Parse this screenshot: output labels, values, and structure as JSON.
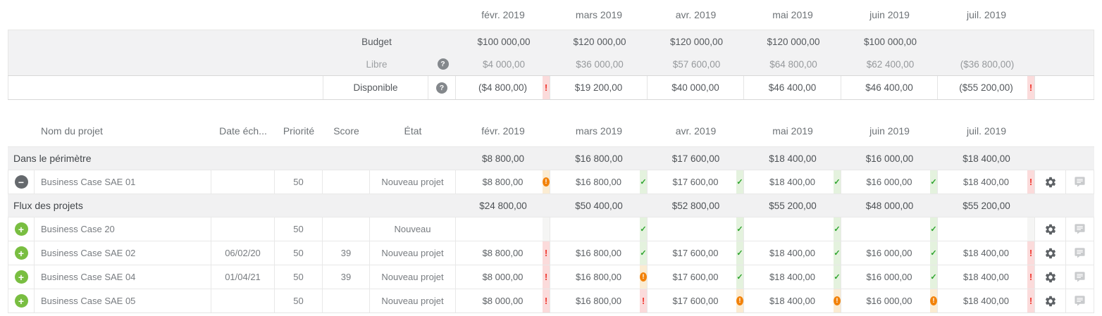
{
  "months": [
    "févr. 2019",
    "mars 2019",
    "avr. 2019",
    "mai 2019",
    "juin 2019",
    "juil. 2019"
  ],
  "summary": {
    "rows": [
      {
        "label": "Budget",
        "help_icon": false,
        "tone": "dark",
        "values": [
          "$100 000,00",
          "$120 000,00",
          "$120 000,00",
          "$120 000,00",
          "$100 000,00",
          ""
        ],
        "flags": [
          "",
          "",
          "",
          "",
          "",
          ""
        ]
      },
      {
        "label": "Libre",
        "help_icon": true,
        "tone": "light",
        "values": [
          "$4 000,00",
          "$36 000,00",
          "$57 600,00",
          "$64 800,00",
          "$62 400,00",
          "($36 800,00)"
        ],
        "flags": [
          "",
          "",
          "",
          "",
          "",
          ""
        ]
      },
      {
        "label": "Disponible",
        "help_icon": true,
        "tone": "dark",
        "values": [
          "($4 800,00)",
          "$19 200,00",
          "$40 000,00",
          "$46 400,00",
          "$46 400,00",
          "($55 200,00)"
        ],
        "flags": [
          "error",
          "",
          "",
          "",
          "",
          "error"
        ]
      }
    ]
  },
  "projects": {
    "columns": [
      "Nom du projet",
      "Date éch...",
      "Priorité",
      "Score",
      "État"
    ],
    "groups": [
      {
        "name": "Dans le périmètre",
        "totals": [
          "$8 800,00",
          "$16 800,00",
          "$17 600,00",
          "$18 400,00",
          "$16 000,00",
          "$18 400,00"
        ],
        "rows": [
          {
            "icon": "minus",
            "name": "Business Case SAE 01",
            "due_date": "",
            "priority": "50",
            "score": "",
            "status": "Nouveau projet",
            "values": [
              "$8 800,00",
              "$16 800,00",
              "$17 600,00",
              "$18 400,00",
              "$16 000,00",
              "$18 400,00"
            ],
            "flags": [
              "warning",
              "ok",
              "ok",
              "ok",
              "ok",
              "error"
            ]
          }
        ]
      },
      {
        "name": "Flux des projets",
        "totals": [
          "$24 800,00",
          "$50 400,00",
          "$52 800,00",
          "$55 200,00",
          "$48 000,00",
          "$55 200,00"
        ],
        "rows": [
          {
            "icon": "plus",
            "name": "Business Case 20",
            "due_date": "",
            "priority": "50",
            "score": "",
            "status": "Nouveau",
            "values": [
              "",
              "",
              "",
              "",
              "",
              ""
            ],
            "flags": [
              "empty",
              "ok",
              "ok",
              "ok",
              "ok",
              "empty"
            ]
          },
          {
            "icon": "plus",
            "name": "Business Case SAE 02",
            "due_date": "06/02/20",
            "priority": "50",
            "score": "39",
            "status": "Nouveau projet",
            "values": [
              "$8 800,00",
              "$16 800,00",
              "$17 600,00",
              "$18 400,00",
              "$16 000,00",
              "$18 400,00"
            ],
            "flags": [
              "error",
              "ok",
              "ok",
              "ok",
              "ok",
              "error"
            ]
          },
          {
            "icon": "plus",
            "name": "Business Case SAE 04",
            "due_date": "01/04/21",
            "priority": "50",
            "score": "39",
            "status": "Nouveau projet",
            "values": [
              "$8 000,00",
              "$16 800,00",
              "$17 600,00",
              "$18 400,00",
              "$16 000,00",
              "$18 400,00"
            ],
            "flags": [
              "error",
              "warning",
              "ok",
              "ok",
              "ok",
              "error"
            ]
          },
          {
            "icon": "plus",
            "name": "Business Case SAE 05",
            "due_date": "",
            "priority": "50",
            "score": "",
            "status": "Nouveau projet",
            "values": [
              "$8 000,00",
              "$16 800,00",
              "$17 600,00",
              "$18 400,00",
              "$16 000,00",
              "$18 400,00"
            ],
            "flags": [
              "error",
              "error",
              "warning",
              "warning",
              "warning",
              "error"
            ]
          }
        ]
      }
    ]
  },
  "icons": {
    "help_glyph": "?",
    "plus_glyph": "+",
    "minus_glyph": "−",
    "check_glyph": "✓",
    "error_glyph": "!",
    "warning_glyph": "!"
  },
  "colors": {
    "ok_green": "#2ba32b",
    "ok_strip": "#e4f2de",
    "error_red": "#ef352c",
    "error_strip": "#fbdbdb",
    "warning_orange": "#f2820a",
    "warning_strip": "#fbecd2",
    "neutral_strip": "#f5f5f4",
    "group_bg": "#f1f1f2",
    "plus_green": "#79be41",
    "minus_gray": "#65696d"
  }
}
